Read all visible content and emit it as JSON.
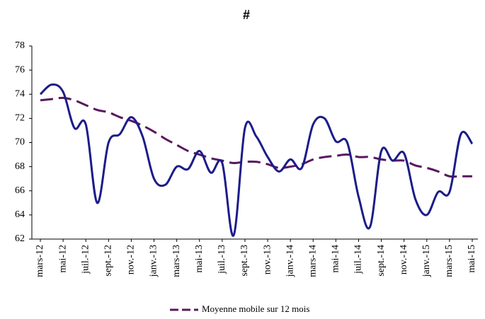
{
  "chart_data": {
    "type": "line",
    "title": "#",
    "categories": [
      "mars-12",
      null,
      "mai-12",
      null,
      "juil.-12",
      null,
      "sept.-12",
      null,
      "nov.-12",
      null,
      "janv.-13",
      null,
      "mars-13",
      null,
      "mai-13",
      null,
      "juil.-13",
      null,
      "sept.-13",
      null,
      "nov.-13",
      null,
      "janv.-14",
      null,
      "mars-14",
      null,
      "mai-14",
      null,
      "juil.-14",
      null,
      "sept.-14",
      null,
      "nov.-14",
      null,
      "janv.-15",
      null,
      "mars-15",
      null,
      "mai-15"
    ],
    "series": [
      {
        "color": "#1c1c8a",
        "dash": false,
        "values": [
          74.0,
          74.8,
          74.2,
          71.2,
          71.5,
          65.0,
          70.0,
          70.7,
          72.1,
          70.5,
          67.0,
          66.5,
          68.0,
          67.8,
          69.3,
          67.5,
          68.3,
          62.3,
          71.2,
          70.5,
          68.8,
          67.6,
          68.6,
          67.9,
          71.5,
          72.0,
          70.1,
          70.0,
          65.5,
          63.0,
          69.3,
          68.5,
          69.1,
          65.3,
          64.0,
          65.9,
          65.9,
          70.7,
          69.9
        ]
      },
      {
        "name": "Moyenne mobile sur 12 mois",
        "color": "#5a1760",
        "dash": true,
        "values": [
          73.5,
          73.6,
          73.7,
          73.5,
          73.1,
          72.7,
          72.5,
          72.1,
          71.8,
          71.4,
          70.9,
          70.3,
          69.8,
          69.3,
          69.0,
          68.7,
          68.5,
          68.3,
          68.4,
          68.4,
          68.2,
          67.9,
          68.0,
          68.2,
          68.6,
          68.8,
          68.9,
          69.0,
          68.8,
          68.8,
          68.6,
          68.5,
          68.5,
          68.1,
          67.9,
          67.6,
          67.2,
          67.2,
          67.2
        ]
      }
    ],
    "ylim": [
      62,
      78
    ],
    "yticks": [
      62,
      64,
      66,
      68,
      70,
      72,
      74,
      76,
      78
    ],
    "legend": "bottom"
  }
}
